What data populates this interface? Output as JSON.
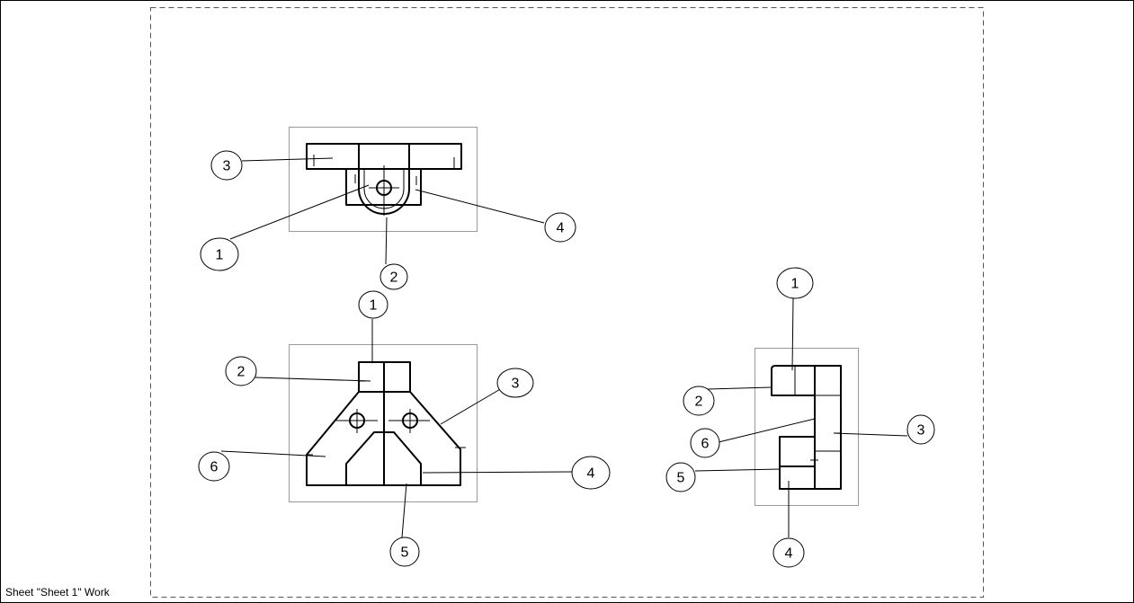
{
  "status": {
    "label": "Sheet \"Sheet 1\" Work"
  },
  "views": [
    {
      "name": "top-view",
      "balloons": [
        "3",
        "1",
        "2",
        "4"
      ]
    },
    {
      "name": "front-view",
      "balloons": [
        "1",
        "2",
        "3",
        "6",
        "4",
        "5"
      ]
    },
    {
      "name": "side-view",
      "balloons": [
        "1",
        "2",
        "6",
        "3",
        "5",
        "4"
      ]
    }
  ]
}
